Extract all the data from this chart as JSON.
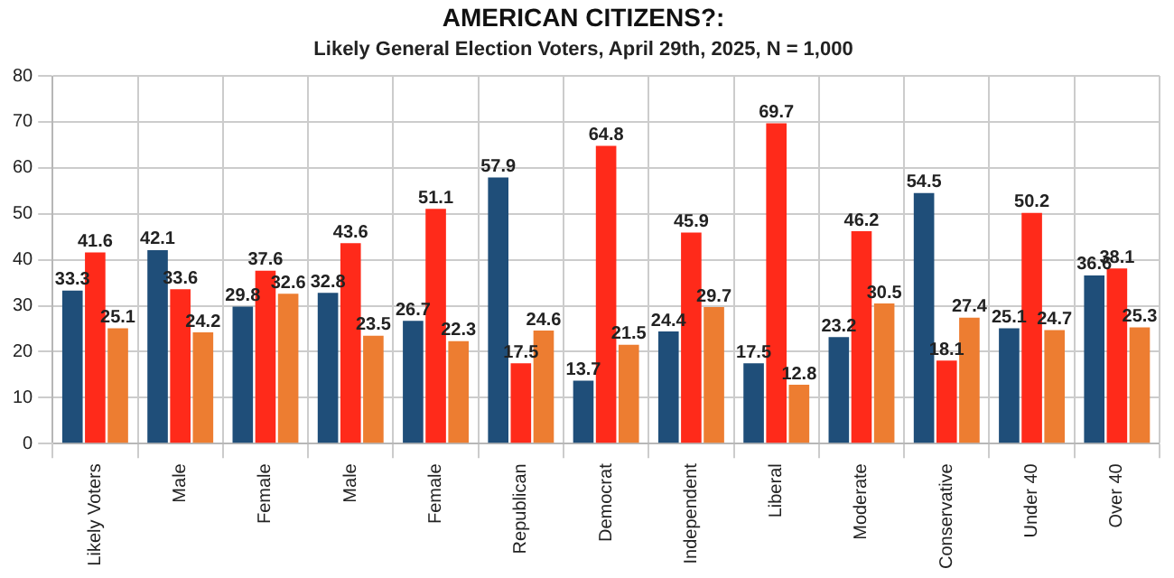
{
  "chart_data": {
    "type": "bar",
    "title": "AMERICAN CITIZENS?:",
    "subtitle": "Likely General Election Voters, April 29th, 2025, N = 1,000",
    "categories": [
      "Likely Voters",
      "Male",
      "Female",
      "Male",
      "Female",
      "Republican",
      "Democrat",
      "Independent",
      "Liberal",
      "Moderate",
      "Conservative",
      "Under 40",
      "Over 40"
    ],
    "series": [
      {
        "color": "#1f4e79",
        "values": [
          33.3,
          42.1,
          29.8,
          32.8,
          26.7,
          57.9,
          13.7,
          24.4,
          17.5,
          23.2,
          54.5,
          25.1,
          36.6
        ]
      },
      {
        "color": "#ff2a1a",
        "values": [
          41.6,
          33.6,
          37.6,
          43.6,
          51.1,
          17.5,
          64.8,
          45.9,
          69.7,
          46.2,
          18.1,
          50.2,
          38.1
        ]
      },
      {
        "color": "#ed7d31",
        "values": [
          25.1,
          24.2,
          32.6,
          23.5,
          22.3,
          24.6,
          21.5,
          29.7,
          12.8,
          30.5,
          27.4,
          24.7,
          25.3
        ]
      }
    ],
    "ylim": [
      0,
      80
    ],
    "yticks": [
      0,
      10,
      20,
      30,
      40,
      50,
      60,
      70,
      80
    ],
    "grid": true,
    "data_labels": true
  }
}
